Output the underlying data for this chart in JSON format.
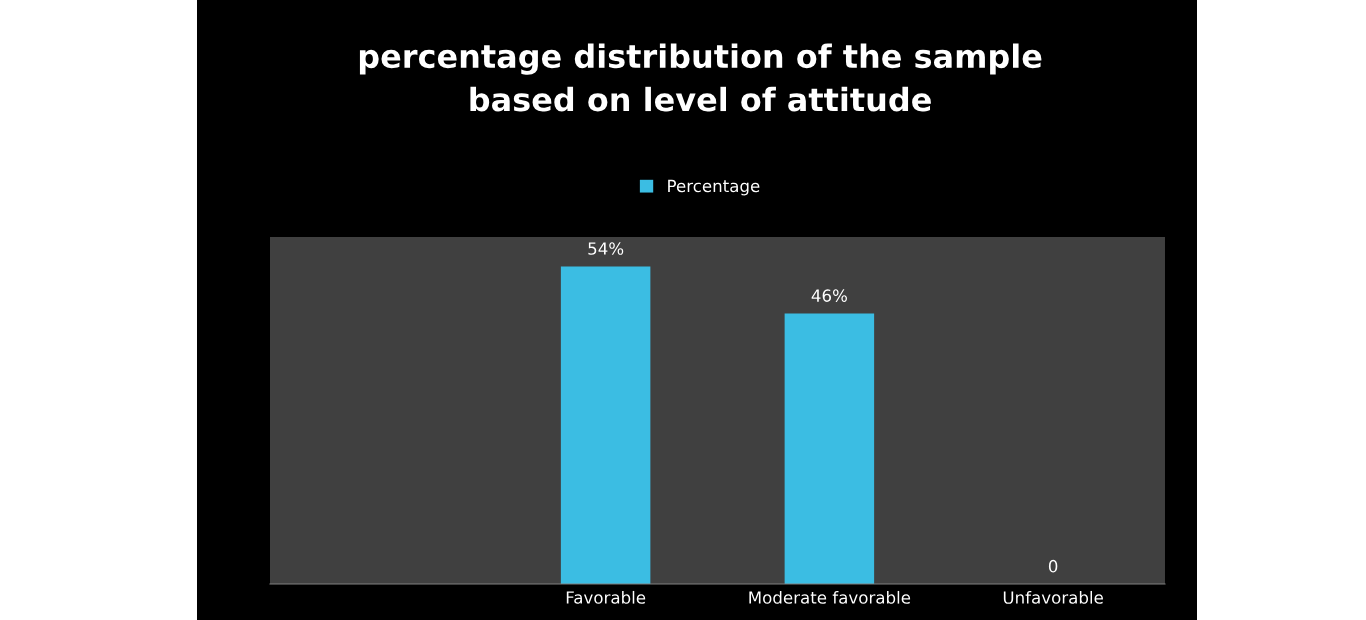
{
  "chart_data": {
    "type": "bar",
    "title": "percentage distribution of the sample\nbased on level of attitude",
    "categories": [
      null,
      "Favorable",
      "Moderate favorable",
      "Unfavorable"
    ],
    "series": [
      {
        "name": "Percentage",
        "color": "#3bbde3",
        "values": [
          null,
          54,
          46,
          0
        ],
        "value_labels": [
          null,
          "54%",
          "46%",
          "0"
        ]
      }
    ],
    "ylim": [
      0,
      59
    ],
    "tick_labels": "x",
    "legend": "top",
    "grid": false
  }
}
